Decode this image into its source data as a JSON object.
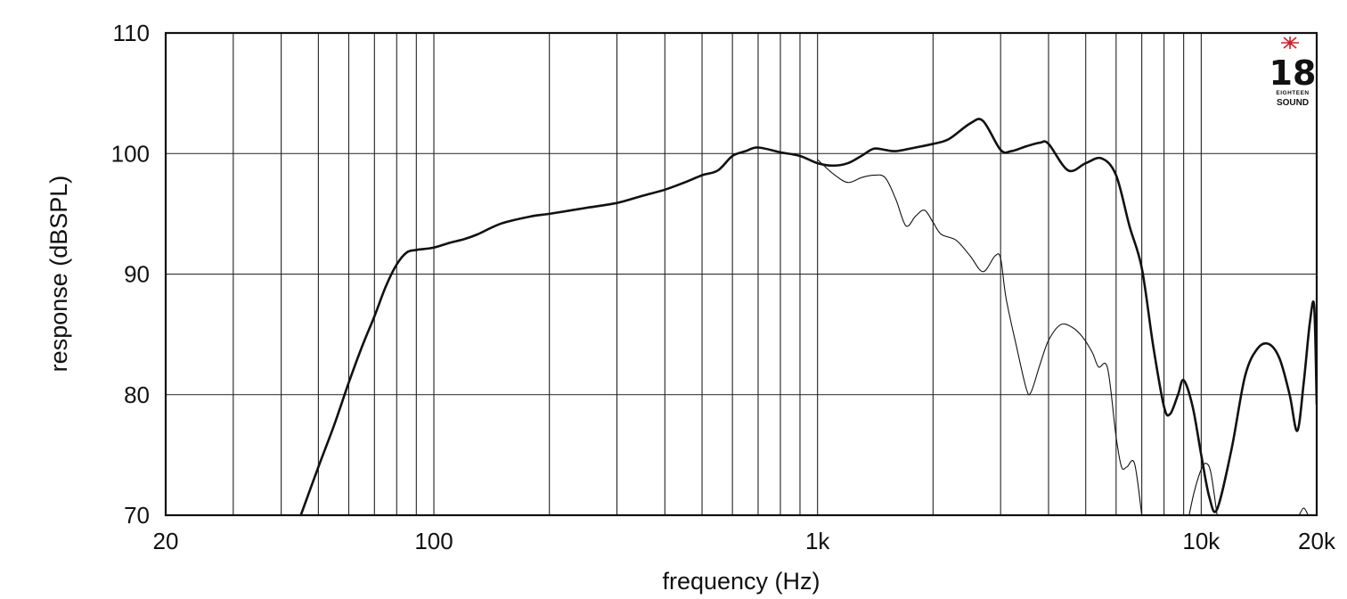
{
  "chart_data": {
    "type": "line",
    "xlabel": "frequency (Hz)",
    "ylabel": "response (dBSPL)",
    "xscale": "log",
    "xlim": [
      20,
      20000
    ],
    "ylim": [
      70,
      110
    ],
    "grid": true,
    "x_ticks": [
      {
        "value": 20,
        "label": "20"
      },
      {
        "value": 100,
        "label": "100"
      },
      {
        "value": 1000,
        "label": "1k"
      },
      {
        "value": 10000,
        "label": "10k"
      },
      {
        "value": 20000,
        "label": "20k"
      }
    ],
    "y_ticks": [
      {
        "value": 70,
        "label": "70"
      },
      {
        "value": 80,
        "label": "80"
      },
      {
        "value": 90,
        "label": "90"
      },
      {
        "value": 100,
        "label": "100"
      },
      {
        "value": 110,
        "label": "110"
      }
    ],
    "x_gridlines": [
      20,
      30,
      40,
      50,
      60,
      70,
      80,
      90,
      100,
      200,
      300,
      400,
      500,
      600,
      700,
      800,
      900,
      1000,
      2000,
      3000,
      4000,
      5000,
      6000,
      7000,
      8000,
      9000,
      10000,
      20000
    ],
    "y_gridlines": [
      70,
      80,
      90,
      100,
      110
    ],
    "series": [
      {
        "style": "thick",
        "points": [
          [
            45,
            70
          ],
          [
            50,
            74
          ],
          [
            55,
            77.5
          ],
          [
            60,
            81
          ],
          [
            65,
            84
          ],
          [
            70,
            86.5
          ],
          [
            75,
            89
          ],
          [
            80,
            90.8
          ],
          [
            85,
            91.8
          ],
          [
            90,
            92
          ],
          [
            100,
            92.2
          ],
          [
            110,
            92.6
          ],
          [
            120,
            92.9
          ],
          [
            130,
            93.3
          ],
          [
            150,
            94.2
          ],
          [
            180,
            94.8
          ],
          [
            200,
            95
          ],
          [
            250,
            95.5
          ],
          [
            300,
            95.9
          ],
          [
            350,
            96.5
          ],
          [
            400,
            97
          ],
          [
            450,
            97.6
          ],
          [
            500,
            98.2
          ],
          [
            550,
            98.6
          ],
          [
            600,
            99.8
          ],
          [
            650,
            100.2
          ],
          [
            700,
            100.5
          ],
          [
            800,
            100.1
          ],
          [
            900,
            99.8
          ],
          [
            1000,
            99.2
          ],
          [
            1100,
            99
          ],
          [
            1200,
            99.2
          ],
          [
            1300,
            99.8
          ],
          [
            1400,
            100.4
          ],
          [
            1500,
            100.3
          ],
          [
            1600,
            100.2
          ],
          [
            1800,
            100.5
          ],
          [
            2000,
            100.8
          ],
          [
            2200,
            101.2
          ],
          [
            2500,
            102.5
          ],
          [
            2700,
            102.7
          ],
          [
            3000,
            100.3
          ],
          [
            3200,
            100.2
          ],
          [
            3500,
            100.6
          ],
          [
            3800,
            100.9
          ],
          [
            4000,
            100.8
          ],
          [
            4500,
            98.6
          ],
          [
            5000,
            99.2
          ],
          [
            5500,
            99.6
          ],
          [
            6000,
            98.2
          ],
          [
            6500,
            94
          ],
          [
            7000,
            90.5
          ],
          [
            7500,
            84
          ],
          [
            8000,
            79
          ],
          [
            8300,
            78.4
          ],
          [
            8700,
            80
          ],
          [
            9000,
            81.2
          ],
          [
            9500,
            79
          ],
          [
            10000,
            75
          ],
          [
            10500,
            71.5
          ],
          [
            11000,
            70.5
          ],
          [
            12000,
            75.5
          ],
          [
            13000,
            81.5
          ],
          [
            14000,
            83.8
          ],
          [
            15000,
            84.2
          ],
          [
            16000,
            83
          ],
          [
            17000,
            80
          ],
          [
            17800,
            77
          ],
          [
            18500,
            81
          ],
          [
            19200,
            86
          ],
          [
            19700,
            87.3
          ],
          [
            20000,
            79.2
          ]
        ]
      },
      {
        "style": "thin",
        "points": [
          [
            1000,
            99.5
          ],
          [
            1100,
            98.3
          ],
          [
            1200,
            97.6
          ],
          [
            1300,
            98
          ],
          [
            1400,
            98.2
          ],
          [
            1500,
            98
          ],
          [
            1600,
            96.2
          ],
          [
            1700,
            94
          ],
          [
            1800,
            94.8
          ],
          [
            1900,
            95.3
          ],
          [
            2000,
            94.3
          ],
          [
            2100,
            93.3
          ],
          [
            2300,
            92.8
          ],
          [
            2500,
            91.5
          ],
          [
            2700,
            90.2
          ],
          [
            2900,
            91.5
          ],
          [
            3000,
            91.3
          ],
          [
            3100,
            88
          ],
          [
            3300,
            84
          ],
          [
            3500,
            80.5
          ],
          [
            3600,
            80.2
          ],
          [
            3800,
            82.5
          ],
          [
            4000,
            84.5
          ],
          [
            4300,
            85.8
          ],
          [
            4600,
            85.6
          ],
          [
            4900,
            84.8
          ],
          [
            5200,
            83.5
          ],
          [
            5400,
            82.3
          ],
          [
            5700,
            82.2
          ],
          [
            6000,
            76.5
          ],
          [
            6200,
            74
          ],
          [
            6400,
            74
          ],
          [
            6700,
            74.3
          ],
          [
            7000,
            70
          ]
        ]
      },
      {
        "style": "thin",
        "points": [
          [
            9300,
            70
          ],
          [
            9600,
            72
          ],
          [
            10000,
            73.8
          ],
          [
            10300,
            74.3
          ],
          [
            10600,
            73.5
          ],
          [
            11000,
            70
          ]
        ]
      },
      {
        "style": "thin",
        "points": [
          [
            18000,
            70
          ],
          [
            18500,
            70.6
          ],
          [
            19000,
            70
          ]
        ]
      }
    ]
  },
  "logo": {
    "number": "18",
    "line1": "EIGHTEEN",
    "line2": "SOUND",
    "star_color": "#d4202a"
  }
}
